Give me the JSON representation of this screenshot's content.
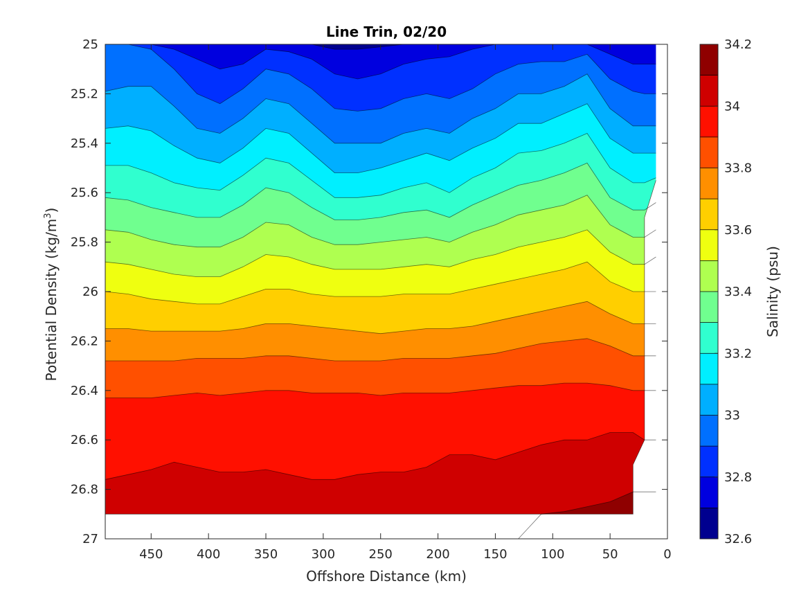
{
  "chart_data": {
    "type": "contourf",
    "title": "Line Trin, 02/20",
    "xlabel": "Offshore Distance (km)",
    "ylabel_prefix": "Potential Density (kg/m",
    "ylabel_sup": "3",
    "ylabel_suffix": ")",
    "xlim": [
      490,
      0
    ],
    "x_reversed": true,
    "ylim": [
      25,
      27
    ],
    "y_reversed": true,
    "x_ticks": [
      450,
      400,
      350,
      300,
      250,
      200,
      150,
      100,
      50,
      0
    ],
    "x_tick_labels": [
      "450",
      "400",
      "350",
      "300",
      "250",
      "200",
      "150",
      "100",
      "50",
      "0"
    ],
    "y_ticks": [
      25,
      25.2,
      25.4,
      25.6,
      25.8,
      26,
      26.2,
      26.4,
      26.6,
      26.8,
      27
    ],
    "y_tick_labels": [
      "25",
      "25.2",
      "25.4",
      "25.6",
      "25.8",
      "26",
      "26.2",
      "26.4",
      "26.6",
      "26.8",
      "27"
    ],
    "grid": false,
    "colormap": "jet",
    "contour_levels": [
      32.6,
      32.7,
      32.8,
      32.9,
      33.0,
      33.1,
      33.2,
      33.3,
      33.4,
      33.5,
      33.6,
      33.7,
      33.8,
      33.9,
      34.0,
      34.1,
      34.2
    ],
    "band_colors": [
      "#00008f",
      "#0000df",
      "#0030ff",
      "#0070ff",
      "#00afff",
      "#00efff",
      "#30ffcf",
      "#70ff8f",
      "#afff50",
      "#efff10",
      "#ffcf00",
      "#ff8f00",
      "#ff5000",
      "#ff1000",
      "#cf0000",
      "#8f0000"
    ],
    "colorbar": {
      "label": "Salinity (psu)",
      "ticks": [
        32.6,
        32.8,
        33.0,
        33.2,
        33.4,
        33.6,
        33.8,
        34.0,
        34.2
      ],
      "tick_labels": [
        "32.6",
        "32.8",
        "33",
        "33.2",
        "33.4",
        "33.6",
        "33.8",
        "34",
        "34.2"
      ],
      "range": [
        32.6,
        34.2
      ]
    },
    "isohaline_depths": {
      "x": [
        490,
        470,
        450,
        430,
        410,
        390,
        370,
        350,
        330,
        310,
        290,
        270,
        250,
        230,
        210,
        190,
        170,
        150,
        130,
        110,
        90,
        70,
        50,
        30,
        20,
        10
      ],
      "lines": [
        {
          "level": 32.7,
          "y": [
            25.0,
            25.0,
            25.0,
            25.0,
            25.0,
            25.0,
            25.0,
            25.0,
            25.0,
            25.0,
            25.02,
            25.02,
            25.01,
            25.0,
            25.0,
            25.0,
            25.0,
            25.0,
            25.0,
            25.0,
            25.0,
            25.0,
            25.0,
            25.0,
            25.0,
            25.0
          ]
        },
        {
          "level": 32.8,
          "y": [
            25.0,
            25.0,
            25.0,
            25.02,
            25.06,
            25.1,
            25.08,
            25.02,
            25.03,
            25.06,
            25.12,
            25.14,
            25.12,
            25.08,
            25.06,
            25.05,
            25.02,
            25.0,
            25.0,
            25.0,
            25.0,
            25.0,
            25.04,
            25.08,
            25.08,
            25.08
          ]
        },
        {
          "level": 32.9,
          "y": [
            25.0,
            25.0,
            25.02,
            25.1,
            25.2,
            25.24,
            25.18,
            25.1,
            25.12,
            25.18,
            25.26,
            25.27,
            25.26,
            25.22,
            25.2,
            25.22,
            25.18,
            25.12,
            25.08,
            25.07,
            25.07,
            25.04,
            25.14,
            25.19,
            25.2,
            25.2
          ]
        },
        {
          "level": 33.0,
          "y": [
            25.19,
            25.17,
            25.17,
            25.25,
            25.34,
            25.36,
            25.3,
            25.22,
            25.24,
            25.32,
            25.4,
            25.4,
            25.4,
            25.36,
            25.34,
            25.36,
            25.3,
            25.26,
            25.2,
            25.2,
            25.17,
            25.12,
            25.26,
            25.33,
            25.33,
            25.33
          ]
        },
        {
          "level": 33.1,
          "y": [
            25.34,
            25.33,
            25.35,
            25.41,
            25.46,
            25.48,
            25.42,
            25.34,
            25.36,
            25.44,
            25.52,
            25.52,
            25.5,
            25.47,
            25.44,
            25.47,
            25.42,
            25.38,
            25.32,
            25.32,
            25.28,
            25.24,
            25.38,
            25.44,
            25.44,
            25.44
          ]
        },
        {
          "level": 33.2,
          "y": [
            25.49,
            25.49,
            25.52,
            25.56,
            25.58,
            25.59,
            25.53,
            25.46,
            25.48,
            25.55,
            25.62,
            25.62,
            25.61,
            25.58,
            25.56,
            25.6,
            25.54,
            25.5,
            25.44,
            25.43,
            25.4,
            25.36,
            25.5,
            25.56,
            25.56,
            25.54
          ]
        },
        {
          "level": 33.3,
          "y": [
            25.62,
            25.63,
            25.66,
            25.68,
            25.7,
            25.7,
            25.65,
            25.58,
            25.6,
            25.66,
            25.71,
            25.71,
            25.7,
            25.68,
            25.67,
            25.7,
            25.65,
            25.61,
            25.57,
            25.55,
            25.52,
            25.48,
            25.62,
            25.67,
            25.67,
            25.64
          ]
        },
        {
          "level": 33.4,
          "y": [
            25.75,
            25.76,
            25.79,
            25.81,
            25.82,
            25.82,
            25.78,
            25.72,
            25.73,
            25.78,
            25.81,
            25.81,
            25.8,
            25.79,
            25.78,
            25.8,
            25.76,
            25.73,
            25.69,
            25.67,
            25.65,
            25.61,
            25.73,
            25.78,
            25.78,
            25.75
          ]
        },
        {
          "level": 33.5,
          "y": [
            25.88,
            25.89,
            25.91,
            25.93,
            25.94,
            25.94,
            25.9,
            25.85,
            25.86,
            25.89,
            25.91,
            25.91,
            25.91,
            25.9,
            25.89,
            25.9,
            25.87,
            25.85,
            25.82,
            25.8,
            25.78,
            25.75,
            25.84,
            25.89,
            25.89,
            25.86
          ]
        },
        {
          "level": 33.6,
          "y": [
            26.0,
            26.01,
            26.03,
            26.04,
            26.05,
            26.05,
            26.02,
            25.99,
            25.99,
            26.01,
            26.02,
            26.02,
            26.02,
            26.01,
            26.01,
            26.01,
            25.99,
            25.97,
            25.95,
            25.93,
            25.91,
            25.88,
            25.96,
            26.0,
            26.0,
            26.0
          ]
        },
        {
          "level": 33.7,
          "y": [
            26.15,
            26.15,
            26.16,
            26.16,
            26.16,
            26.16,
            26.15,
            26.13,
            26.13,
            26.14,
            26.15,
            26.16,
            26.17,
            26.16,
            26.15,
            26.15,
            26.14,
            26.12,
            26.1,
            26.08,
            26.06,
            26.04,
            26.09,
            26.13,
            26.13,
            26.13
          ]
        },
        {
          "level": 33.8,
          "y": [
            26.28,
            26.28,
            26.28,
            26.28,
            26.27,
            26.27,
            26.27,
            26.26,
            26.26,
            26.27,
            26.28,
            26.28,
            26.28,
            26.27,
            26.27,
            26.27,
            26.26,
            26.25,
            26.23,
            26.21,
            26.2,
            26.19,
            26.22,
            26.26,
            26.26,
            26.26
          ]
        },
        {
          "level": 33.9,
          "y": [
            26.43,
            26.43,
            26.43,
            26.42,
            26.41,
            26.42,
            26.41,
            26.4,
            26.4,
            26.41,
            26.41,
            26.41,
            26.42,
            26.41,
            26.41,
            26.41,
            26.4,
            26.39,
            26.38,
            26.38,
            26.37,
            26.37,
            26.38,
            26.4,
            26.4,
            26.4
          ]
        },
        {
          "level": 34.0,
          "y": [
            26.76,
            26.74,
            26.72,
            26.69,
            26.71,
            26.73,
            26.73,
            26.72,
            26.74,
            26.76,
            26.76,
            26.74,
            26.73,
            26.73,
            26.71,
            26.66,
            26.66,
            26.68,
            26.65,
            26.62,
            26.6,
            26.6,
            26.57,
            26.57,
            26.6,
            26.6
          ]
        },
        {
          "level": 34.1,
          "y": [
            27.0,
            27.0,
            27.0,
            27.0,
            27.0,
            27.0,
            27.0,
            27.0,
            27.0,
            27.0,
            27.0,
            27.0,
            27.0,
            27.0,
            27.0,
            27.0,
            27.0,
            27.0,
            27.0,
            26.9,
            26.89,
            26.87,
            26.85,
            26.81,
            26.81,
            26.81
          ]
        }
      ]
    },
    "data_extent": {
      "x": [
        490,
        470,
        450,
        430,
        410,
        390,
        370,
        350,
        330,
        310,
        290,
        270,
        250,
        230,
        210,
        190,
        170,
        150,
        130,
        110,
        90,
        70,
        50,
        30,
        30,
        20,
        20,
        10
      ],
      "y": [
        26.9,
        26.9,
        26.9,
        26.9,
        26.9,
        26.9,
        26.9,
        26.9,
        26.9,
        26.9,
        26.9,
        26.9,
        26.9,
        26.9,
        26.9,
        26.9,
        26.9,
        26.9,
        26.9,
        26.9,
        26.9,
        26.9,
        26.9,
        26.9,
        26.7,
        26.6,
        25.7,
        25.55
      ]
    }
  }
}
